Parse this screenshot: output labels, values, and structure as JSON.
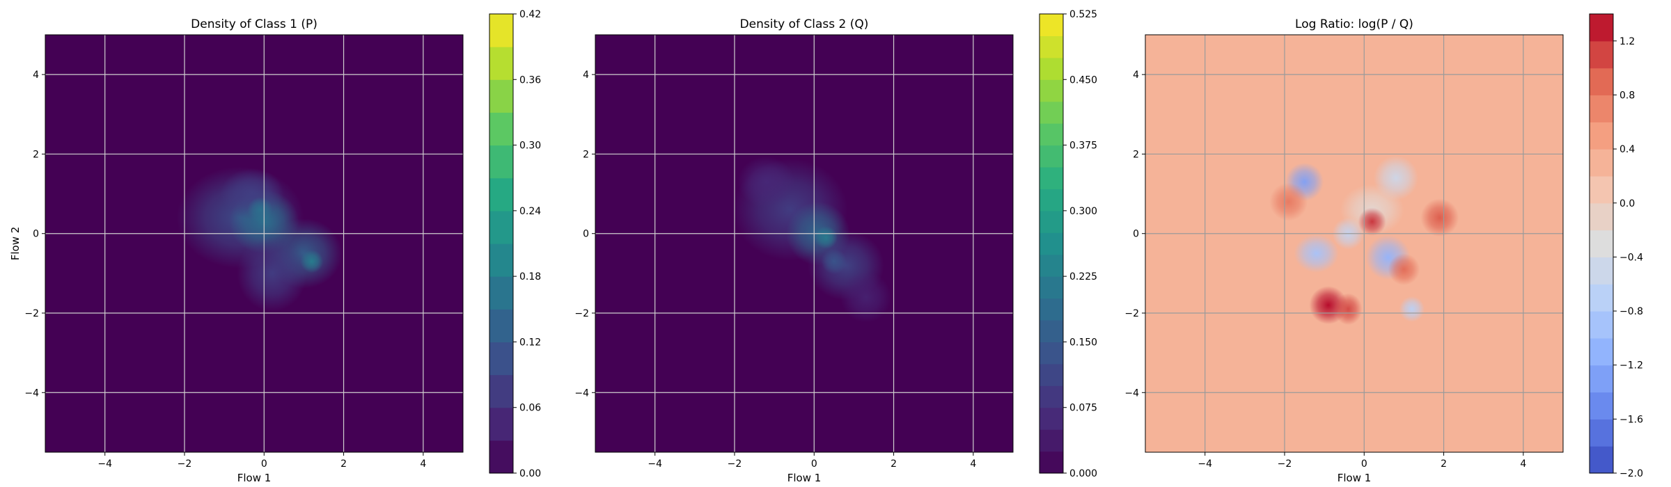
{
  "chart_data": [
    {
      "type": "heatmap",
      "title": "Density of Class 1 (P)",
      "xlabel": "Flow 1",
      "ylabel": "Flow 2",
      "xlim": [
        -5.5,
        5.0
      ],
      "ylim": [
        -5.5,
        5.0
      ],
      "xticks": [
        -4,
        -2,
        0,
        2,
        4
      ],
      "yticks": [
        -4,
        -2,
        0,
        2,
        4
      ],
      "grid": true,
      "colormap": "viridis",
      "background_color": "#440154",
      "colorbar": {
        "min": 0.0,
        "max": 0.42,
        "ticks": [
          "0.00",
          "0.06",
          "0.12",
          "0.18",
          "0.24",
          "0.30",
          "0.36",
          "0.42"
        ],
        "levels": 14
      },
      "blobs": [
        {
          "x": -0.6,
          "y": 0.4,
          "sx": 1.0,
          "sy": 0.8,
          "amp": 0.1
        },
        {
          "x": 0.0,
          "y": 0.3,
          "sx": 0.55,
          "sy": 0.5,
          "amp": 0.16
        },
        {
          "x": 1.0,
          "y": -0.5,
          "sx": 0.6,
          "sy": 0.55,
          "amp": 0.13
        },
        {
          "x": -0.3,
          "y": 1.0,
          "sx": 0.5,
          "sy": 0.4,
          "amp": 0.08
        },
        {
          "x": 0.2,
          "y": -1.0,
          "sx": 0.55,
          "sy": 0.6,
          "amp": 0.08
        },
        {
          "x": 1.2,
          "y": -0.7,
          "sx": 0.18,
          "sy": 0.18,
          "amp": 0.18
        },
        {
          "x": -0.1,
          "y": 0.6,
          "sx": 0.2,
          "sy": 0.2,
          "amp": 0.16
        }
      ]
    },
    {
      "type": "heatmap",
      "title": "Density of Class 2 (Q)",
      "xlabel": "Flow 1",
      "ylabel": "",
      "xlim": [
        -5.5,
        5.0
      ],
      "ylim": [
        -5.5,
        5.0
      ],
      "xticks": [
        -4,
        -2,
        0,
        2,
        4
      ],
      "yticks": [
        -4,
        -2,
        0,
        2,
        4
      ],
      "grid": true,
      "colormap": "viridis",
      "background_color": "#440154",
      "colorbar": {
        "min": 0.0,
        "max": 0.525,
        "ticks": [
          "0.000",
          "0.075",
          "0.150",
          "0.225",
          "0.300",
          "0.375",
          "0.450",
          "0.525"
        ],
        "levels": 21
      },
      "blobs": [
        {
          "x": -0.6,
          "y": 0.6,
          "sx": 0.9,
          "sy": 0.8,
          "amp": 0.1
        },
        {
          "x": 0.1,
          "y": 0.0,
          "sx": 0.5,
          "sy": 0.5,
          "amp": 0.18
        },
        {
          "x": 0.8,
          "y": -0.8,
          "sx": 0.6,
          "sy": 0.55,
          "amp": 0.11
        },
        {
          "x": 1.3,
          "y": -1.6,
          "sx": 0.4,
          "sy": 0.4,
          "amp": 0.05
        },
        {
          "x": -1.2,
          "y": 1.3,
          "sx": 0.45,
          "sy": 0.4,
          "amp": 0.06
        },
        {
          "x": 0.3,
          "y": -0.1,
          "sx": 0.18,
          "sy": 0.18,
          "amp": 0.22
        },
        {
          "x": 0.5,
          "y": -0.7,
          "sx": 0.2,
          "sy": 0.2,
          "amp": 0.14
        }
      ]
    },
    {
      "type": "heatmap",
      "title": "Log Ratio: log(P / Q)",
      "xlabel": "Flow 1",
      "ylabel": "",
      "xlim": [
        -5.5,
        5.0
      ],
      "ylim": [
        -5.5,
        5.0
      ],
      "xticks": [
        -4,
        -2,
        0,
        2,
        4
      ],
      "yticks": [
        -4,
        -2,
        0,
        2,
        4
      ],
      "grid": true,
      "colormap": "coolwarm",
      "background_value": 0.3,
      "colorbar": {
        "min": -2.0,
        "max": 1.4,
        "ticks": [
          "−2.0",
          "−1.6",
          "−1.2",
          "−0.8",
          "−0.4",
          "0.0",
          "0.4",
          "0.8",
          "1.2"
        ],
        "levels": 17
      },
      "blobs": [
        {
          "x": -1.5,
          "y": 1.3,
          "sx": 0.3,
          "sy": 0.3,
          "amp": -1.6
        },
        {
          "x": -1.2,
          "y": -0.5,
          "sx": 0.35,
          "sy": 0.3,
          "amp": -1.2
        },
        {
          "x": 0.6,
          "y": -0.6,
          "sx": 0.35,
          "sy": 0.35,
          "amp": -1.4
        },
        {
          "x": 1.2,
          "y": -1.9,
          "sx": 0.2,
          "sy": 0.2,
          "amp": -1.0
        },
        {
          "x": 0.8,
          "y": 1.4,
          "sx": 0.35,
          "sy": 0.35,
          "amp": -0.8
        },
        {
          "x": -0.4,
          "y": 0.0,
          "sx": 0.25,
          "sy": 0.25,
          "amp": -0.9
        },
        {
          "x": 0.2,
          "y": 0.6,
          "sx": 0.5,
          "sy": 0.4,
          "amp": -0.5
        },
        {
          "x": -0.9,
          "y": -1.8,
          "sx": 0.3,
          "sy": 0.3,
          "amp": 1.1
        },
        {
          "x": -0.4,
          "y": -1.9,
          "sx": 0.22,
          "sy": 0.25,
          "amp": 0.8
        },
        {
          "x": 0.2,
          "y": 0.3,
          "sx": 0.22,
          "sy": 0.22,
          "amp": 0.9
        },
        {
          "x": 1.9,
          "y": 0.4,
          "sx": 0.3,
          "sy": 0.3,
          "amp": 0.7
        },
        {
          "x": -1.9,
          "y": 0.8,
          "sx": 0.3,
          "sy": 0.3,
          "amp": 0.5
        },
        {
          "x": 1.0,
          "y": -0.9,
          "sx": 0.25,
          "sy": 0.25,
          "amp": 0.6
        }
      ]
    }
  ]
}
